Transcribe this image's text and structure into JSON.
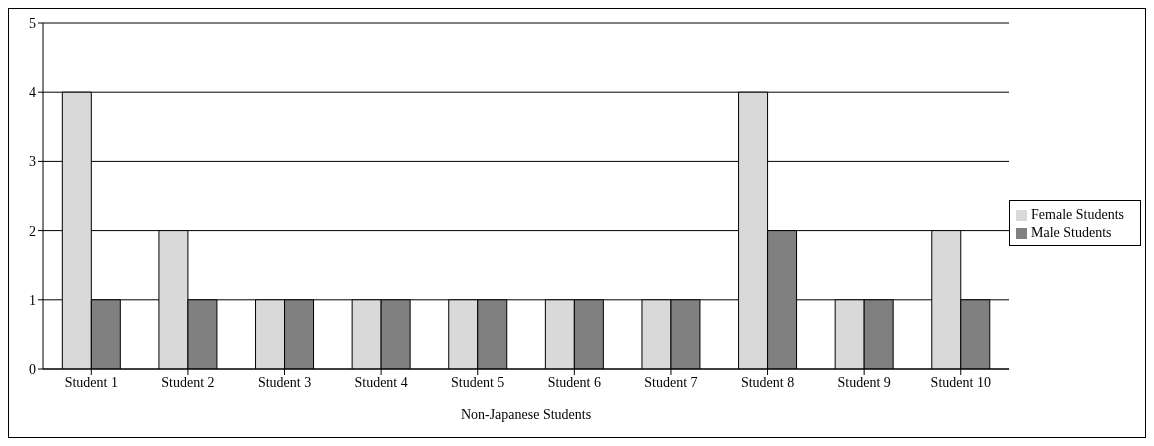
{
  "chart_data": {
    "type": "bar",
    "xlabel": "Non-Japanese Students",
    "categories": [
      "Student 1",
      "Student 2",
      "Student 3",
      "Student 4",
      "Student 5",
      "Student 6",
      "Student 7",
      "Student 8",
      "Student 9",
      "Student 10"
    ],
    "series": [
      {
        "name": "Female Students",
        "color": "#d9d9d9",
        "values": [
          4,
          2,
          1,
          1,
          1,
          1,
          1,
          4,
          1,
          2
        ]
      },
      {
        "name": "Male Students",
        "color": "#808080",
        "values": [
          1,
          1,
          1,
          1,
          1,
          1,
          1,
          2,
          1,
          1
        ]
      }
    ],
    "ylim": [
      0,
      5
    ],
    "yticks": [
      0,
      1,
      2,
      3,
      4,
      5
    ],
    "grid": "y",
    "legend": "right"
  }
}
